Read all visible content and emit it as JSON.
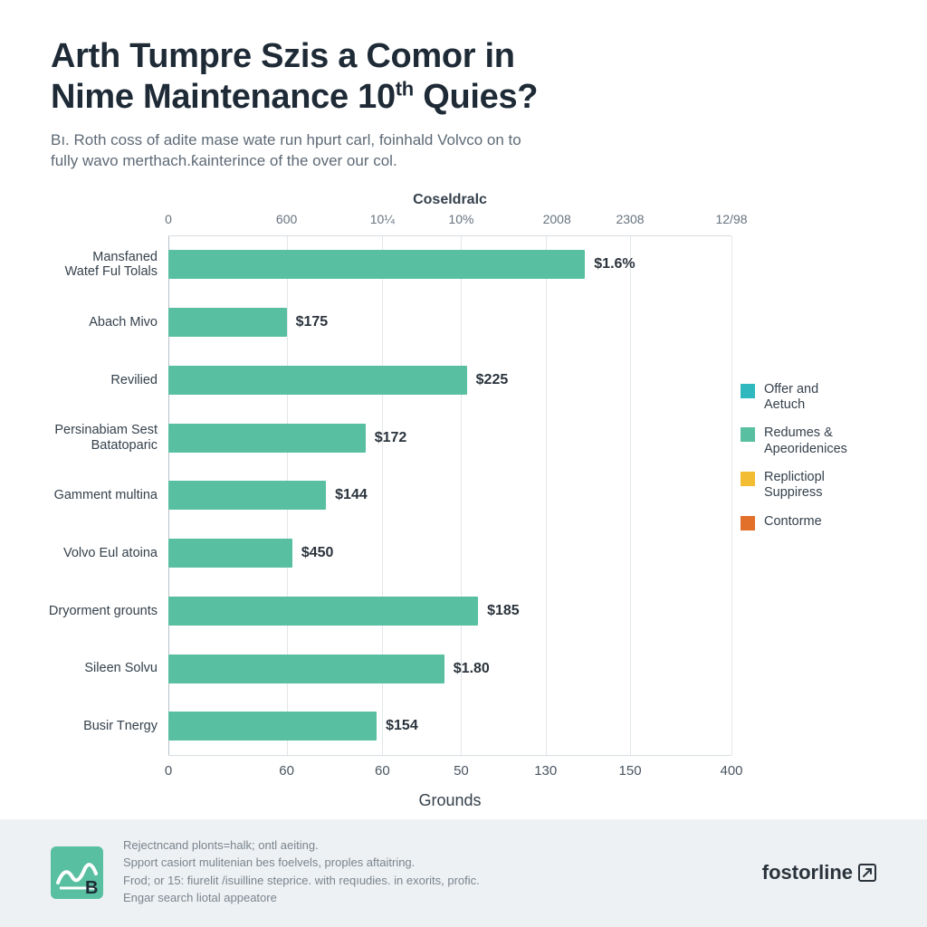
{
  "header": {
    "title_line1": "Arth Tumpre Szis a Comor in",
    "title_line2_before": "Nime Maintenance 10",
    "title_line2_sup": "th",
    "title_line2_after": " Quies?",
    "subtitle_line1": "Bı. Roth coss of adite mase wate run hpurt carl, foinhald Volvco on to",
    "subtitle_line2": "fully wavo merthach.ƙainterince of the over our col."
  },
  "chart": {
    "type": "bar-horizontal",
    "top_axis_title": "Coseldralc",
    "bottom_axis_title": "Grounds",
    "bar_color": "#58bfa0",
    "grid_color": "#e3e7eb",
    "axis_color": "#b8c0c7",
    "label_color": "#35414c",
    "tick_color": "#66727e",
    "xlim": [
      0,
      100
    ],
    "top_ticks": [
      {
        "pos": 0,
        "label": "0"
      },
      {
        "pos": 21,
        "label": "600"
      },
      {
        "pos": 38,
        "label": "10¼"
      },
      {
        "pos": 52,
        "label": "10%"
      },
      {
        "pos": 69,
        "label": "2008"
      },
      {
        "pos": 82,
        "label": "2308"
      },
      {
        "pos": 100,
        "label": "12/98"
      }
    ],
    "bottom_ticks": [
      {
        "pos": 0,
        "label": "0"
      },
      {
        "pos": 21,
        "label": "60"
      },
      {
        "pos": 38,
        "label": "60"
      },
      {
        "pos": 52,
        "label": "50"
      },
      {
        "pos": 67,
        "label": "130"
      },
      {
        "pos": 82,
        "label": "150"
      },
      {
        "pos": 100,
        "label": "400"
      }
    ],
    "gridlines": [
      0,
      21,
      38,
      52,
      67,
      82,
      100
    ],
    "rows": [
      {
        "category_l1": "Mansfaned",
        "category_l2": "Watef Ful Tolals",
        "value_pct": 74,
        "value_label": "$1.6%"
      },
      {
        "category_l1": "Abach Mivo",
        "category_l2": "",
        "value_pct": 21,
        "value_label": "$175"
      },
      {
        "category_l1": "Revilied",
        "category_l2": "",
        "value_pct": 53,
        "value_label": "$225"
      },
      {
        "category_l1": "Persinabiam Sest",
        "category_l2": "Batatoparic",
        "value_pct": 35,
        "value_label": "$172"
      },
      {
        "category_l1": "Gamment multina",
        "category_l2": "",
        "value_pct": 28,
        "value_label": "$144"
      },
      {
        "category_l1": "Volvo Eul atoina",
        "category_l2": "",
        "value_pct": 22,
        "value_label": "$450"
      },
      {
        "category_l1": "Dryorment grounts",
        "category_l2": "",
        "value_pct": 55,
        "value_label": "$185"
      },
      {
        "category_l1": "Sileen Solvu",
        "category_l2": "",
        "value_pct": 49,
        "value_label": "$1.80"
      },
      {
        "category_l1": "Busir Tnergy",
        "category_l2": "",
        "value_pct": 37,
        "value_label": "$154"
      }
    ]
  },
  "legend": {
    "items": [
      {
        "color": "#2fb9be",
        "l1": "Offer and",
        "l2": "Aetuch"
      },
      {
        "color": "#58bfa0",
        "l1": "Redumes &",
        "l2": "Apeoridenices"
      },
      {
        "color": "#f2bd33",
        "l1": "Replictiopl",
        "l2": "Suppiress"
      },
      {
        "color": "#e2702a",
        "l1": "Contorme",
        "l2": ""
      }
    ]
  },
  "footer": {
    "lines": [
      "Rejectncand plonts=halk; ontl aeiting.",
      "Spport casiort mulitenian bes foelvels, proples aftaitring.",
      "Frod; or 15: fiurelit /isuilline steprice. with reqıudies. in exorits, profic.",
      "Engar search liotal appeatore"
    ],
    "brand": "fostorline",
    "logo_color": "#58bfa0",
    "logo_accent": "#2a333c"
  }
}
